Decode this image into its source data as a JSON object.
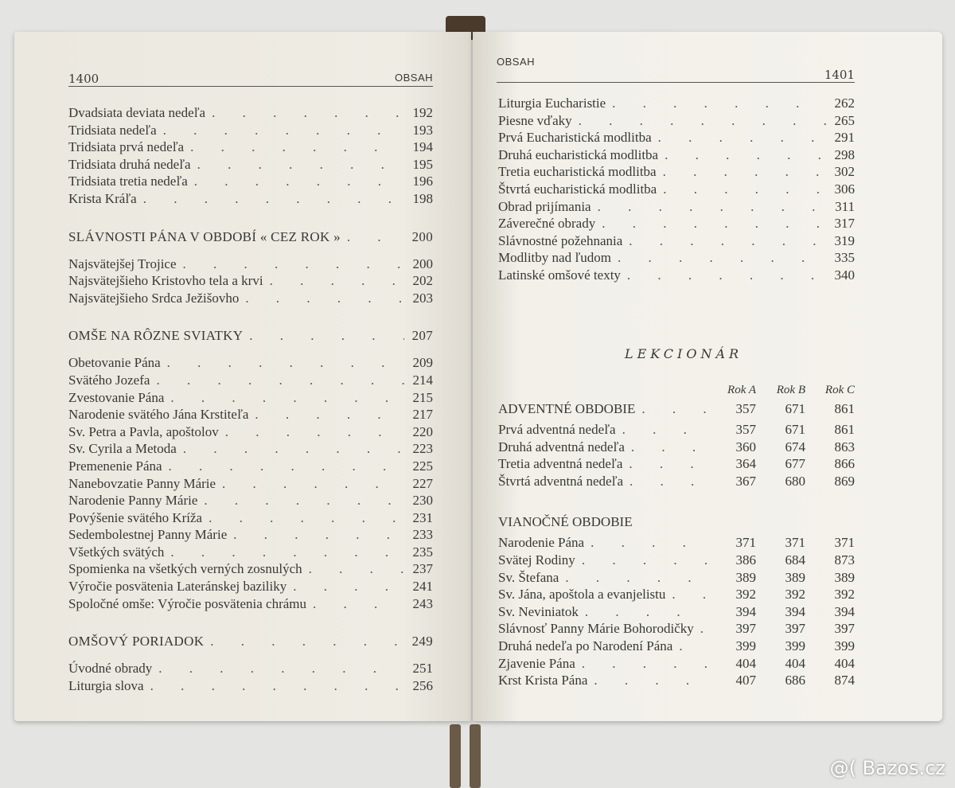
{
  "left_page": {
    "number": "1400",
    "header": "OBSAH",
    "entries": [
      {
        "title": "Dvadsiata deviata nedeľa",
        "page": "192"
      },
      {
        "title": "Tridsiata nedeľa",
        "page": "193"
      },
      {
        "title": "Tridsiata prvá nedeľa",
        "page": "194"
      },
      {
        "title": "Tridsiata druhá nedeľa",
        "page": "195"
      },
      {
        "title": "Tridsiata tretia nedeľa",
        "page": "196"
      },
      {
        "title": "Krista Kráľa",
        "page": "198"
      }
    ],
    "sections": [
      {
        "title": "SLÁVNOSTI PÁNA V OBDOBÍ « CEZ ROK »",
        "page": "200",
        "entries": [
          {
            "title": "Najsvätejšej Trojice",
            "page": "200"
          },
          {
            "title": "Najsvätejšieho Kristovho tela a krvi",
            "page": "202"
          },
          {
            "title": "Najsvätejšieho Srdca Ježišovho",
            "page": "203"
          }
        ]
      },
      {
        "title": "OMŠE NA RÔZNE SVIATKY",
        "page": "207",
        "entries": [
          {
            "title": "Obetovanie Pána",
            "page": "209"
          },
          {
            "title": "Svätého Jozefa",
            "page": "214"
          },
          {
            "title": "Zvestovanie Pána",
            "page": "215"
          },
          {
            "title": "Narodenie svätého Jána Krstiteľa",
            "page": "217"
          },
          {
            "title": "Sv. Petra a Pavla, apoštolov",
            "page": "220"
          },
          {
            "title": "Sv. Cyrila a Metoda",
            "page": "223"
          },
          {
            "title": "Premenenie Pána",
            "page": "225"
          },
          {
            "title": "Nanebovzatie Panny Márie",
            "page": "227"
          },
          {
            "title": "Narodenie Panny Márie",
            "page": "230"
          },
          {
            "title": "Povýšenie svätého Kríža",
            "page": "231"
          },
          {
            "title": "Sedembolestnej Panny Márie",
            "page": "233"
          },
          {
            "title": "Všetkých svätých",
            "page": "235"
          },
          {
            "title": "Spomienka na všetkých verných zosnulých",
            "page": "237"
          },
          {
            "title": "Výročie posvätenia Lateránskej baziliky",
            "page": "241"
          },
          {
            "title": "Spoločné omše: Výročie posvätenia chrámu",
            "page": "243"
          }
        ]
      },
      {
        "title": "OMŠOVÝ PORIADOK",
        "page": "249",
        "entries": [
          {
            "title": "Úvodné obrady",
            "page": "251"
          },
          {
            "title": "Liturgia slova",
            "page": "256"
          }
        ]
      }
    ]
  },
  "right_page": {
    "number": "1401",
    "header": "OBSAH",
    "entries": [
      {
        "title": "Liturgia Eucharistie",
        "page": "262"
      },
      {
        "title": "Piesne vďaky",
        "page": "265"
      },
      {
        "title": "Prvá Eucharistická modlitba",
        "page": "291"
      },
      {
        "title": "Druhá eucharistická modlitba",
        "page": "298"
      },
      {
        "title": "Tretia eucharistická modlitba",
        "page": "302"
      },
      {
        "title": "Štvrtá eucharistická modlitba",
        "page": "306"
      },
      {
        "title": "Obrad prijímania",
        "page": "311"
      },
      {
        "title": "Záverečné obrady",
        "page": "317"
      },
      {
        "title": "Slávnostné požehnania",
        "page": "319"
      },
      {
        "title": "Modlitby nad ľudom",
        "page": "335"
      },
      {
        "title": "Latinské omšové texty",
        "page": "340"
      }
    ],
    "lekcionar": {
      "title": "LEKCIONÁR",
      "columns": [
        "Rok A",
        "Rok B",
        "Rok C"
      ],
      "sections": [
        {
          "title": "ADVENTNÉ OBDOBIE",
          "pages": [
            "357",
            "671",
            "861"
          ],
          "entries": [
            {
              "title": "Prvá adventná nedeľa",
              "pages": [
                "357",
                "671",
                "861"
              ]
            },
            {
              "title": "Druhá adventná nedeľa",
              "pages": [
                "360",
                "674",
                "863"
              ]
            },
            {
              "title": "Tretia adventná nedeľa",
              "pages": [
                "364",
                "677",
                "866"
              ]
            },
            {
              "title": "Štvrtá adventná nedeľa",
              "pages": [
                "367",
                "680",
                "869"
              ]
            }
          ]
        },
        {
          "title": "VIANOČNÉ OBDOBIE",
          "pages": [
            "",
            "",
            ""
          ],
          "entries": [
            {
              "title": "Narodenie Pána",
              "pages": [
                "371",
                "371",
                "371"
              ]
            },
            {
              "title": "Svätej Rodiny",
              "pages": [
                "386",
                "684",
                "873"
              ]
            },
            {
              "title": "Sv. Štefana",
              "pages": [
                "389",
                "389",
                "389"
              ]
            },
            {
              "title": "Sv. Jána, apoštola a evanjelistu",
              "pages": [
                "392",
                "392",
                "392"
              ]
            },
            {
              "title": "Sv. Neviniatok",
              "pages": [
                "394",
                "394",
                "394"
              ]
            },
            {
              "title": "Slávnosť Panny Márie Bohorodičky",
              "pages": [
                "397",
                "397",
                "397"
              ]
            },
            {
              "title": "Druhá nedeľa po Narodení Pána",
              "pages": [
                "399",
                "399",
                "399"
              ]
            },
            {
              "title": "Zjavenie Pána",
              "pages": [
                "404",
                "404",
                "404"
              ]
            },
            {
              "title": "Krst Krista Pána",
              "pages": [
                "407",
                "686",
                "874"
              ]
            }
          ]
        }
      ]
    }
  },
  "watermark": "@( Bazos.cz"
}
